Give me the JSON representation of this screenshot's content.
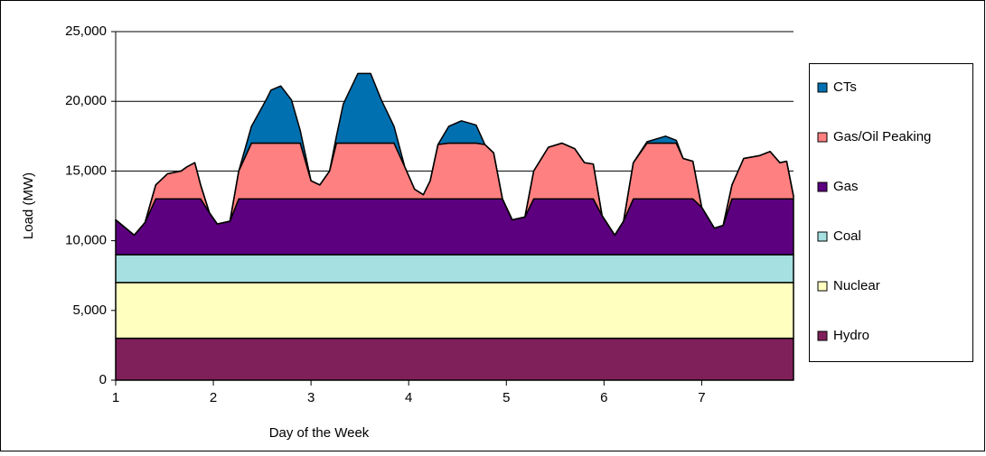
{
  "chart_data": {
    "type": "stacked-area",
    "x_label": "Day of the Week",
    "y_label": "Load (MW)",
    "x": [
      1.0,
      1.19,
      1.3,
      1.41,
      1.53,
      1.67,
      1.73,
      1.81,
      1.87,
      1.96,
      2.04,
      2.17,
      2.26,
      2.39,
      2.54,
      2.59,
      2.69,
      2.8,
      2.89,
      3.0,
      3.09,
      3.19,
      3.26,
      3.33,
      3.48,
      3.61,
      3.72,
      3.85,
      3.96,
      4.06,
      4.15,
      4.22,
      4.3,
      4.41,
      4.54,
      4.69,
      4.78,
      4.87,
      4.96,
      5.06,
      5.19,
      5.28,
      5.43,
      5.57,
      5.7,
      5.8,
      5.89,
      5.98,
      6.11,
      6.2,
      6.3,
      6.44,
      6.63,
      6.74,
      6.81,
      6.91,
      7.0,
      7.13,
      7.22,
      7.31,
      7.43,
      7.59,
      7.7,
      7.8,
      7.87,
      7.94
    ],
    "series": [
      {
        "name": "Hydro",
        "color": "#80205a",
        "values": [
          3000,
          3000,
          3000,
          3000,
          3000,
          3000,
          3000,
          3000,
          3000,
          3000,
          3000,
          3000,
          3000,
          3000,
          3000,
          3000,
          3000,
          3000,
          3000,
          3000,
          3000,
          3000,
          3000,
          3000,
          3000,
          3000,
          3000,
          3000,
          3000,
          3000,
          3000,
          3000,
          3000,
          3000,
          3000,
          3000,
          3000,
          3000,
          3000,
          3000,
          3000,
          3000,
          3000,
          3000,
          3000,
          3000,
          3000,
          3000,
          3000,
          3000,
          3000,
          3000,
          3000,
          3000,
          3000,
          3000,
          3000,
          3000,
          3000,
          3000,
          3000,
          3000,
          3000,
          3000,
          3000,
          3000
        ]
      },
      {
        "name": "Nuclear",
        "color": "#ffffc0",
        "values": [
          4000,
          4000,
          4000,
          4000,
          4000,
          4000,
          4000,
          4000,
          4000,
          4000,
          4000,
          4000,
          4000,
          4000,
          4000,
          4000,
          4000,
          4000,
          4000,
          4000,
          4000,
          4000,
          4000,
          4000,
          4000,
          4000,
          4000,
          4000,
          4000,
          4000,
          4000,
          4000,
          4000,
          4000,
          4000,
          4000,
          4000,
          4000,
          4000,
          4000,
          4000,
          4000,
          4000,
          4000,
          4000,
          4000,
          4000,
          4000,
          4000,
          4000,
          4000,
          4000,
          4000,
          4000,
          4000,
          4000,
          4000,
          4000,
          4000,
          4000,
          4000,
          4000,
          4000,
          4000,
          4000,
          4000
        ]
      },
      {
        "name": "Coal",
        "color": "#a6e0e0",
        "values": [
          2000,
          2000,
          2000,
          2000,
          2000,
          2000,
          2000,
          2000,
          2000,
          2000,
          2000,
          2000,
          2000,
          2000,
          2000,
          2000,
          2000,
          2000,
          2000,
          2000,
          2000,
          2000,
          2000,
          2000,
          2000,
          2000,
          2000,
          2000,
          2000,
          2000,
          2000,
          2000,
          2000,
          2000,
          2000,
          2000,
          2000,
          2000,
          2000,
          2000,
          2000,
          2000,
          2000,
          2000,
          2000,
          2000,
          2000,
          2000,
          2000,
          2000,
          2000,
          2000,
          2000,
          2000,
          2000,
          2000,
          2000,
          2000,
          2000,
          2000,
          2000,
          2000,
          2000,
          2000,
          2000,
          2000
        ]
      },
      {
        "name": "Gas",
        "color": "#5c0080",
        "values": [
          2500,
          1400,
          2300,
          4000,
          4000,
          4000,
          4000,
          4000,
          4000,
          3000,
          2200,
          2400,
          4000,
          4000,
          4000,
          4000,
          4000,
          4000,
          4000,
          4000,
          4000,
          4000,
          4000,
          4000,
          4000,
          4000,
          4000,
          4000,
          4000,
          4000,
          4000,
          4000,
          4000,
          4000,
          4000,
          4000,
          4000,
          4000,
          4000,
          2500,
          2700,
          4000,
          4000,
          4000,
          4000,
          4000,
          4000,
          2800,
          1400,
          2400,
          4000,
          4000,
          4000,
          4000,
          4000,
          4000,
          3400,
          1900,
          2100,
          4000,
          4000,
          4000,
          4000,
          4000,
          4000,
          4000
        ]
      },
      {
        "name": "Gas/Oil Peaking",
        "color": "#ff8080",
        "values": [
          0,
          0,
          0,
          1000,
          1800,
          2000,
          2300,
          2600,
          1000,
          0,
          0,
          0,
          2000,
          4000,
          4000,
          4000,
          4000,
          4000,
          4000,
          1300,
          1000,
          2000,
          4000,
          4000,
          4000,
          4000,
          4000,
          4000,
          2300,
          700,
          300,
          1300,
          3900,
          4000,
          4000,
          4000,
          3900,
          3300,
          0,
          0,
          0,
          2000,
          3700,
          4000,
          3600,
          2600,
          2500,
          0,
          0,
          0,
          2600,
          4000,
          4000,
          4000,
          2900,
          2700,
          0,
          0,
          0,
          1000,
          2900,
          3100,
          3400,
          2600,
          2700,
          200
        ]
      },
      {
        "name": "CTs",
        "color": "#0070b0",
        "values": [
          0,
          0,
          0,
          0,
          0,
          0,
          0,
          0,
          0,
          0,
          0,
          0,
          0,
          1200,
          3100,
          3800,
          4100,
          3100,
          900,
          0,
          0,
          0,
          500,
          2800,
          5000,
          5000,
          3100,
          1200,
          0,
          0,
          0,
          0,
          0,
          1200,
          1600,
          1300,
          0,
          0,
          0,
          0,
          0,
          0,
          0,
          0,
          0,
          0,
          0,
          0,
          0,
          0,
          0,
          100,
          500,
          200,
          0,
          0,
          0,
          0,
          0,
          0,
          0,
          0,
          0,
          0,
          0,
          0
        ]
      }
    ],
    "xlim": [
      1,
      7.94
    ],
    "xticks": [
      1,
      2,
      3,
      4,
      5,
      6,
      7
    ],
    "ylim": [
      0,
      25000
    ],
    "yticks": [
      0,
      {
        "value": 5000,
        "label": "5,000"
      },
      {
        "value": 10000,
        "label": "10,000"
      },
      {
        "value": 15000,
        "label": "15,000"
      },
      {
        "value": 20000,
        "label": "20,000"
      },
      {
        "value": 25000,
        "label": "25,000"
      }
    ],
    "grid": true,
    "legend": "right"
  }
}
